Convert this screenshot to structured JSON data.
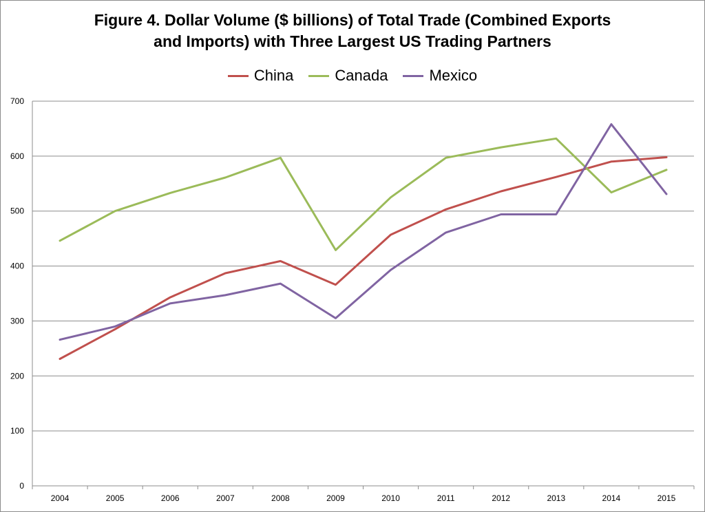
{
  "chart_data": {
    "type": "line",
    "title_lines": [
      "Figure 4. Dollar Volume ($ billions) of Total Trade (Combined Exports",
      "and Imports) with Three Largest US Trading Partners"
    ],
    "categories": [
      "2004",
      "2005",
      "2006",
      "2007",
      "2008",
      "2009",
      "2010",
      "2011",
      "2012",
      "2013",
      "2014",
      "2015"
    ],
    "ylim": [
      0,
      700
    ],
    "yticks": [
      0,
      100,
      200,
      300,
      400,
      500,
      600,
      700
    ],
    "grid": true,
    "legend_position": "top-center",
    "series": [
      {
        "name": "China",
        "color": "#c0504d",
        "values": [
          231,
          285,
          343,
          387,
          409,
          366,
          457,
          503,
          536,
          562,
          590,
          598
        ]
      },
      {
        "name": "Canada",
        "color": "#9bbb59",
        "values": [
          446,
          500,
          533,
          561,
          597,
          429,
          525,
          597,
          616,
          632,
          534,
          575
        ]
      },
      {
        "name": "Mexico",
        "color": "#8064a2",
        "values": [
          266,
          290,
          332,
          347,
          368,
          305,
          393,
          461,
          494,
          494,
          658,
          531
        ]
      }
    ]
  }
}
